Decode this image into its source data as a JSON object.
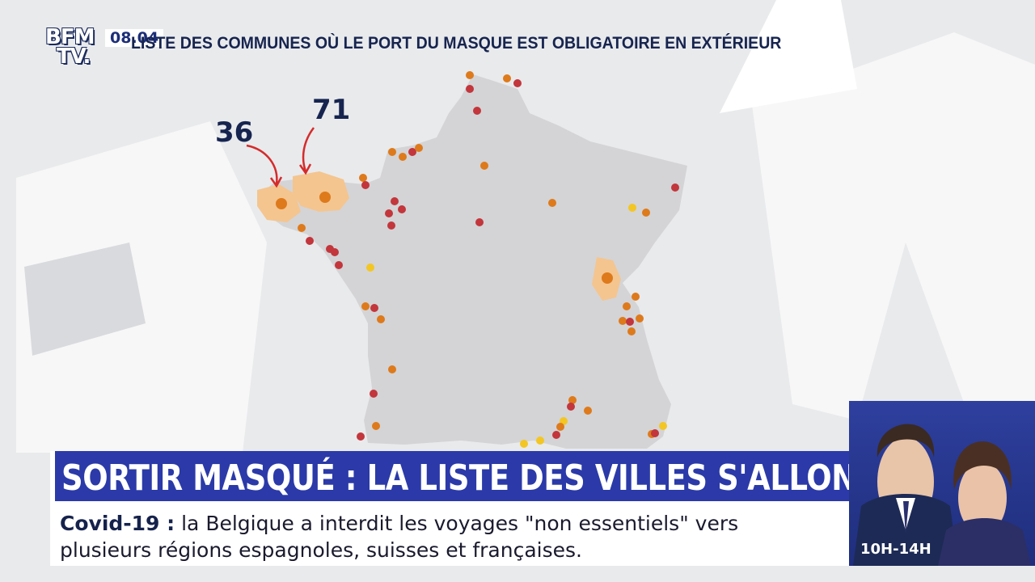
{
  "channel": {
    "logo_line1": "BFM",
    "logo_line2": "TV.",
    "clock": "08.04"
  },
  "map": {
    "title": "LISTE DES COMMUNES OÙ LE PORT DU MASQUE EST OBLIGATOIRE EN EXTÉRIEUR",
    "callouts": [
      {
        "value": "36"
      },
      {
        "value": "71"
      }
    ],
    "colors": {
      "land": "#d4d4d6",
      "red": "#c2363c",
      "orange": "#de7a1b",
      "yellow": "#f3c624",
      "zone": "#f4c58f"
    }
  },
  "headline": "SORTIR MASQUÉ : LA LISTE DES VILLES S'ALLONGE",
  "ticker": {
    "tag": "Covid-19 :",
    "line1": "la Belgique a interdit les voyages \"non essentiels\" vers",
    "line2": "plusieurs régions espagnoles, suisses et françaises."
  },
  "show": {
    "time_slot": "10H-14H"
  }
}
